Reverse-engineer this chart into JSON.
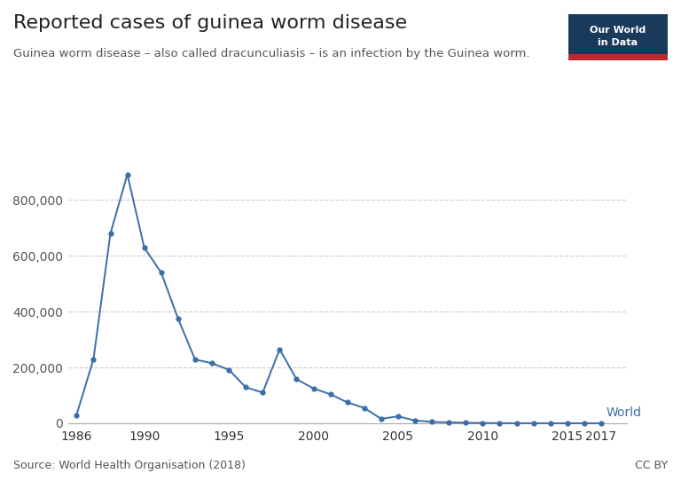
{
  "title": "Reported cases of guinea worm disease",
  "subtitle": "Guinea worm disease – also called dracunculiasis – is an infection by the Guinea worm.",
  "source": "Source: World Health Organisation (2018)",
  "cc": "CC BY",
  "line_label": "World",
  "line_color": "#3B6EA8",
  "background_color": "#ffffff",
  "years": [
    1986,
    1987,
    1988,
    1989,
    1990,
    1991,
    1992,
    1993,
    1994,
    1995,
    1996,
    1997,
    1998,
    1999,
    2000,
    2001,
    2002,
    2003,
    2004,
    2005,
    2006,
    2007,
    2008,
    2009,
    2010,
    2011,
    2012,
    2013,
    2014,
    2015,
    2016,
    2017
  ],
  "values": [
    30000,
    230000,
    680000,
    892055,
    630000,
    540000,
    375000,
    229000,
    215000,
    192000,
    129000,
    110000,
    265000,
    158000,
    125000,
    104000,
    75000,
    55000,
    16000,
    25000,
    10000,
    5000,
    3190,
    1800,
    1060,
    542,
    148,
    126,
    22,
    25,
    30,
    30
  ],
  "ylim": [
    0,
    1000000
  ],
  "yticks": [
    0,
    200000,
    400000,
    600000,
    800000
  ],
  "xlim": [
    1985.5,
    2018.5
  ],
  "xticks": [
    1986,
    1990,
    1995,
    2000,
    2005,
    2010,
    2015,
    2017
  ],
  "grid_color": "#cccccc",
  "marker_size": 3.5,
  "logo_bg": "#1a3a5c",
  "logo_red": "#c0272d",
  "logo_text": "Our World\nin Data"
}
